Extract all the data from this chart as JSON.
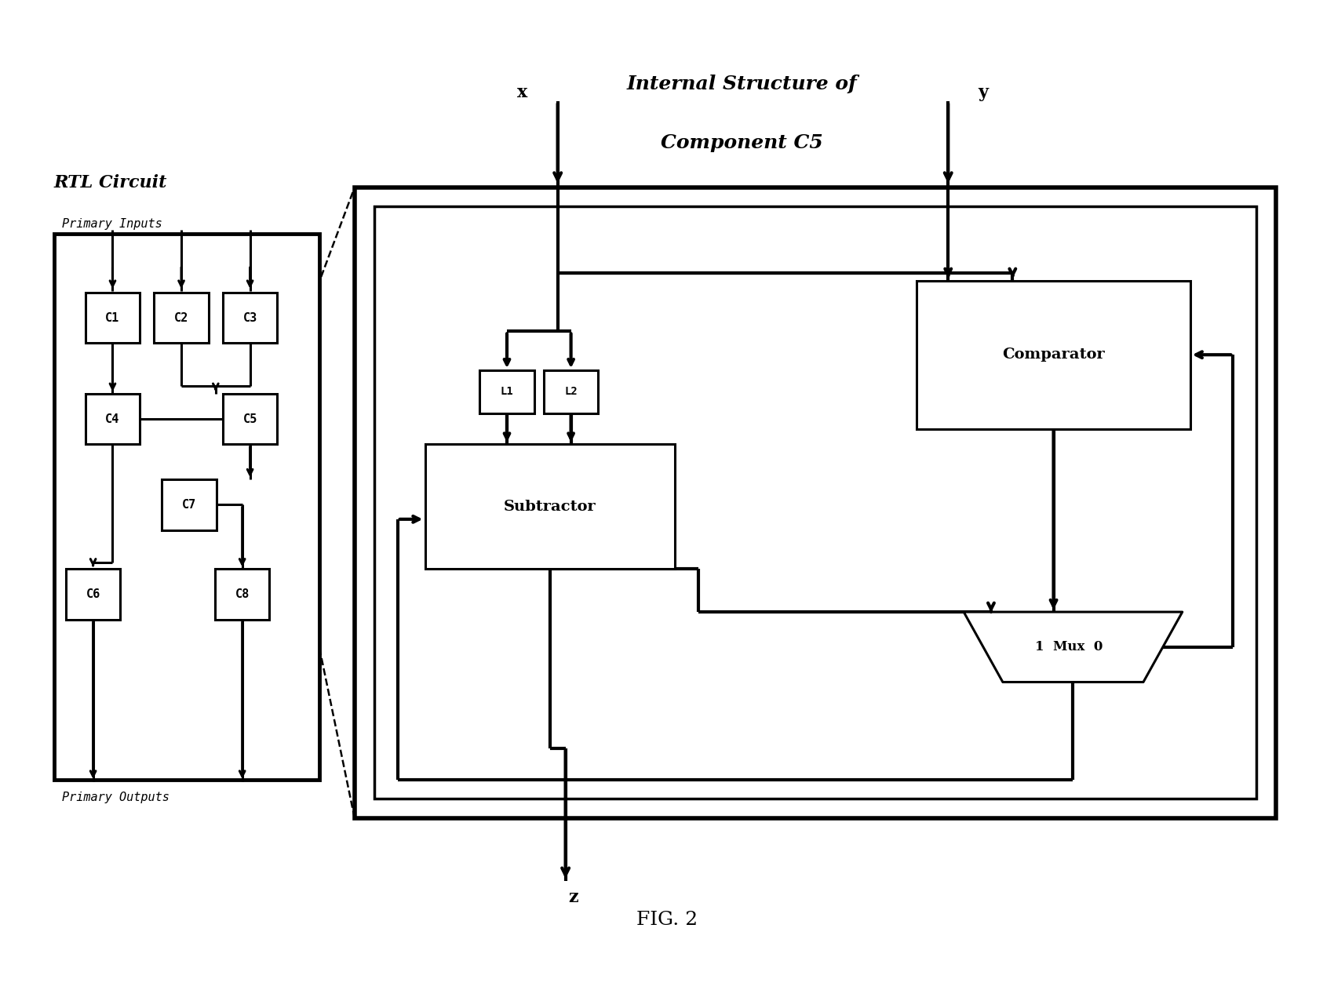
{
  "bg_color": "#ffffff",
  "fig_caption": "FIG. 2",
  "rtl_title": "RTL Circuit",
  "rtl_subtitle": "Primary Inputs",
  "rtl_footer": "Primary Outputs",
  "c5_title_line1": "Internal Structure of",
  "c5_title_line2": "Component C5",
  "input_x": "x",
  "input_y": "y",
  "output_z": "z",
  "lw_thick": 3.0,
  "lw_thin": 2.2,
  "lw_dashed": 1.8
}
